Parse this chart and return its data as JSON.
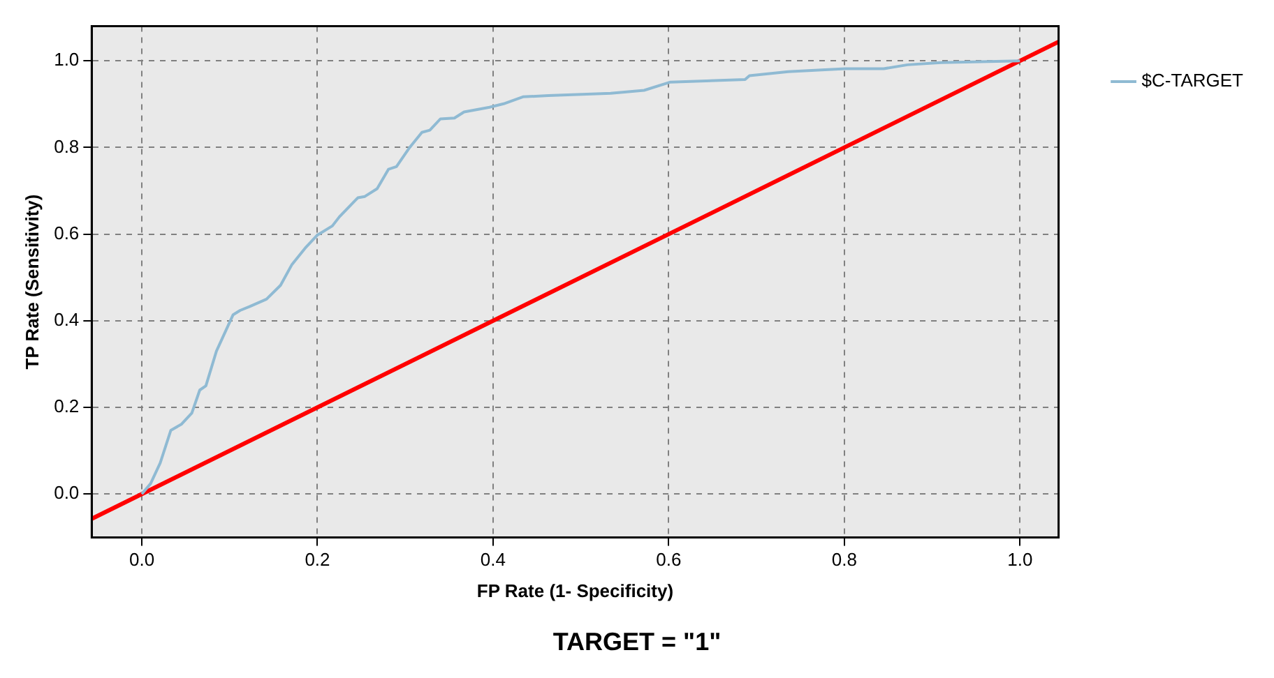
{
  "chart_data": {
    "type": "line",
    "title": "TARGET = \"1\"",
    "xlabel": "FP Rate (1- Specificity)",
    "ylabel": "TP Rate (Sensitivity)",
    "xlim": [
      -0.057,
      1.044
    ],
    "ylim": [
      -0.1,
      1.08
    ],
    "xticks": [
      {
        "value": 0,
        "label": "0.0"
      },
      0.2,
      0.4,
      0.6,
      0.8,
      {
        "value": 1,
        "label": "1.0"
      }
    ],
    "yticks": [
      {
        "value": 0,
        "label": "0.0"
      },
      0.2,
      0.4,
      0.6,
      0.8,
      {
        "value": 1,
        "label": "1.0"
      }
    ],
    "grid": true,
    "legend": "top right",
    "marker": "none",
    "line_style": "solid",
    "series": [
      {
        "name": "$C-TARGET",
        "color": "#8fbad3",
        "x": [
          0,
          0.01,
          0.021,
          0.033,
          0.045,
          0.057,
          0.066,
          0.073,
          0.085,
          0.104,
          0.112,
          0.123,
          0.142,
          0.158,
          0.171,
          0.187,
          0.2,
          0.217,
          0.225,
          0.246,
          0.254,
          0.268,
          0.281,
          0.29,
          0.305,
          0.319,
          0.328,
          0.34,
          0.356,
          0.367,
          0.396,
          0.412,
          0.434,
          0.463,
          0.534,
          0.572,
          0.602,
          0.687,
          0.692,
          0.736,
          0.801,
          0.845,
          0.872,
          0.91,
          1.0
        ],
        "values": [
          0,
          0.024,
          0.072,
          0.147,
          0.161,
          0.187,
          0.24,
          0.25,
          0.33,
          0.414,
          0.424,
          0.433,
          0.45,
          0.482,
          0.53,
          0.57,
          0.598,
          0.619,
          0.64,
          0.684,
          0.687,
          0.705,
          0.75,
          0.756,
          0.8,
          0.835,
          0.84,
          0.866,
          0.868,
          0.882,
          0.893,
          0.901,
          0.917,
          0.92,
          0.925,
          0.932,
          0.951,
          0.957,
          0.966,
          0.975,
          0.982,
          0.982,
          0.991,
          0.996,
          1.0
        ]
      },
      {
        "color": "#ff0000",
        "x": [
          -0.057,
          1.044
        ],
        "values": [
          -0.057,
          1.044
        ]
      }
    ]
  }
}
